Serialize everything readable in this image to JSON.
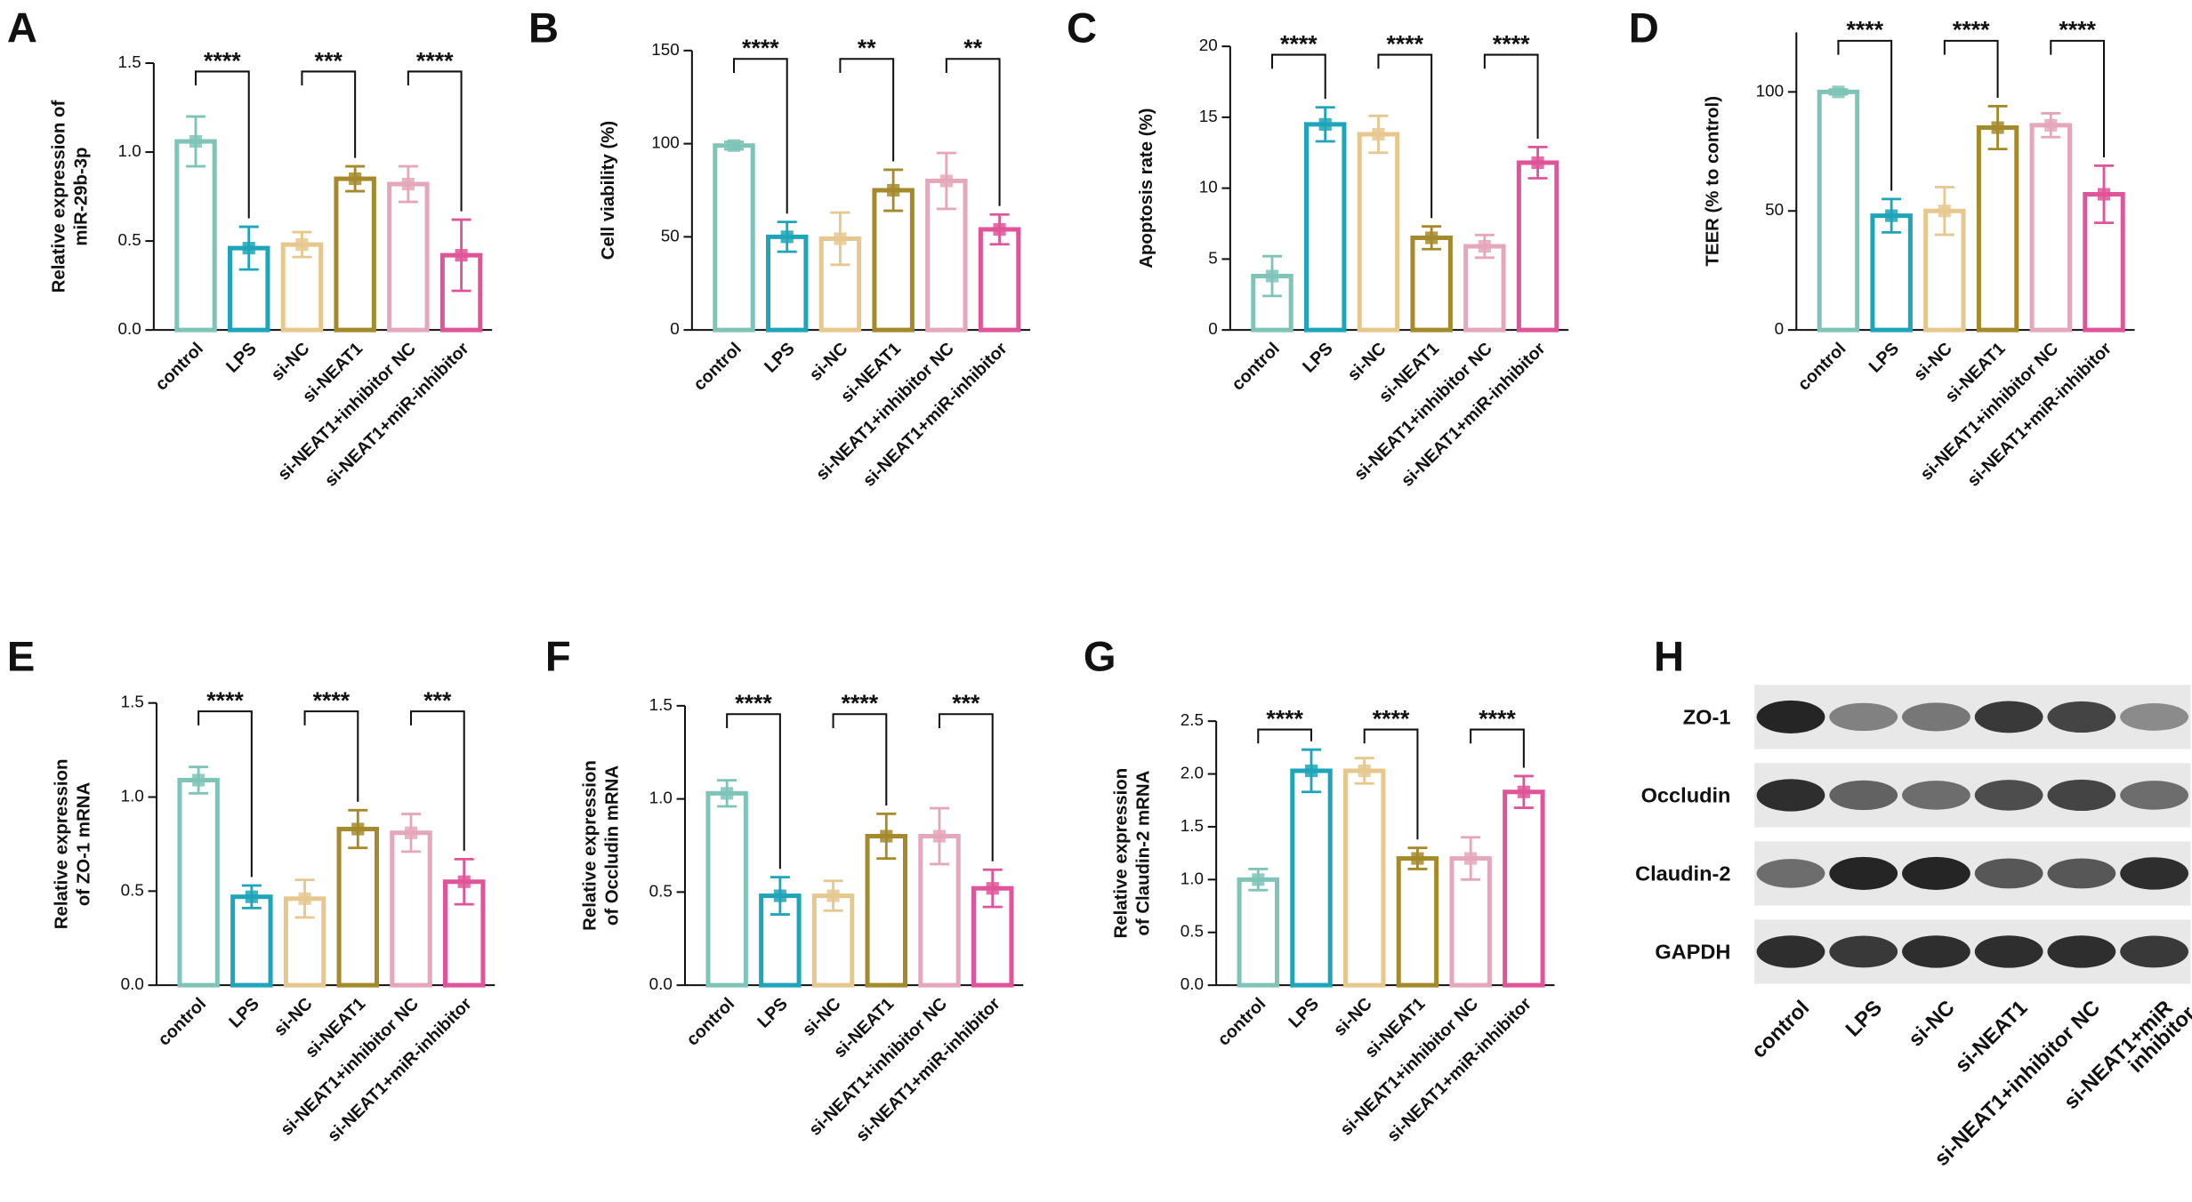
{
  "chart_data": [
    {
      "type": "bar",
      "panel": "A",
      "ylabel": [
        "Relative expression of",
        "miR-29b-3p"
      ],
      "categories": [
        "control",
        "LPS",
        "si-NC",
        "si-NEAT1",
        "si-NEAT1+inhibitor NC",
        "si-NEAT1+miR-inhibitor"
      ],
      "colors": [
        "#7fc4b8",
        "#1ea5b9",
        "#e6c88f",
        "#a58a2c",
        "#e5a7ba",
        "#e0559a"
      ],
      "values": [
        1.06,
        0.46,
        0.48,
        0.85,
        0.82,
        0.42
      ],
      "errors": [
        0.14,
        0.12,
        0.07,
        0.07,
        0.1,
        0.2
      ],
      "ylim": [
        0,
        1.5
      ],
      "yticks": [
        {
          "value": 0,
          "label": "0.0"
        },
        0.5,
        {
          "value": 1,
          "label": "1.0"
        },
        1.5
      ],
      "annotations": [
        "****",
        "***",
        "****"
      ]
    },
    {
      "type": "bar",
      "panel": "B",
      "ylabel": [
        "Cell viability (%)"
      ],
      "categories": [
        "control",
        "LPS",
        "si-NC",
        "si-NEAT1",
        "si-NEAT1+inhibitor NC",
        "si-NEAT1+miR-inhibitor"
      ],
      "colors": [
        "#7fc4b8",
        "#1ea5b9",
        "#e6c88f",
        "#a58a2c",
        "#e5a7ba",
        "#e0559a"
      ],
      "values": [
        99,
        50,
        49,
        75,
        80,
        54
      ],
      "errors": [
        2,
        8,
        14,
        11,
        15,
        8
      ],
      "ylim": [
        0,
        150
      ],
      "yticks": [
        0,
        50,
        100,
        150
      ],
      "annotations": [
        "****",
        "**",
        "**"
      ]
    },
    {
      "type": "bar",
      "panel": "C",
      "ylabel": [
        "Apoptosis rate (%)"
      ],
      "categories": [
        "control",
        "LPS",
        "si-NC",
        "si-NEAT1",
        "si-NEAT1+inhibitor NC",
        "si-NEAT1+miR-inhibitor"
      ],
      "colors": [
        "#7fc4b8",
        "#1ea5b9",
        "#e6c88f",
        "#a58a2c",
        "#e5a7ba",
        "#e0559a"
      ],
      "values": [
        3.8,
        14.5,
        13.8,
        6.5,
        5.9,
        11.8
      ],
      "errors": [
        1.4,
        1.2,
        1.3,
        0.8,
        0.8,
        1.1
      ],
      "ylim": [
        0,
        20
      ],
      "yticks": [
        0,
        5,
        10,
        15,
        20
      ],
      "annotations": [
        "****",
        "****",
        "****"
      ]
    },
    {
      "type": "bar",
      "panel": "D",
      "ylabel": [
        "TEER (% to control)"
      ],
      "categories": [
        "control",
        "LPS",
        "si-NC",
        "si-NEAT1",
        "si-NEAT1+inhibitor NC",
        "si-NEAT1+miR-inhibitor"
      ],
      "colors": [
        "#7fc4b8",
        "#1ea5b9",
        "#e6c88f",
        "#a58a2c",
        "#e5a7ba",
        "#e0559a"
      ],
      "values": [
        100,
        48,
        50,
        85,
        86,
        57
      ],
      "errors": [
        1,
        7,
        10,
        9,
        5,
        12
      ],
      "ylim": [
        0,
        125
      ],
      "yticks": [
        0,
        50,
        100
      ],
      "annotations": [
        "****",
        "****",
        "****"
      ]
    },
    {
      "type": "bar",
      "panel": "E",
      "ylabel": [
        "Relative expression",
        "of ZO-1 mRNA"
      ],
      "categories": [
        "control",
        "LPS",
        "si-NC",
        "si-NEAT1",
        "si-NEAT1+inhibitor NC",
        "si-NEAT1+miR-inhibitor"
      ],
      "colors": [
        "#7fc4b8",
        "#1ea5b9",
        "#e6c88f",
        "#a58a2c",
        "#e5a7ba",
        "#e0559a"
      ],
      "values": [
        1.09,
        0.47,
        0.46,
        0.83,
        0.81,
        0.55
      ],
      "errors": [
        0.07,
        0.06,
        0.1,
        0.1,
        0.1,
        0.12
      ],
      "ylim": [
        0,
        1.5
      ],
      "yticks": [
        {
          "value": 0,
          "label": "0.0"
        },
        0.5,
        {
          "value": 1,
          "label": "1.0"
        },
        1.5
      ],
      "annotations": [
        "****",
        "****",
        "***"
      ]
    },
    {
      "type": "bar",
      "panel": "F",
      "ylabel": [
        "Relative expression",
        "of Occludin mRNA"
      ],
      "categories": [
        "control",
        "LPS",
        "si-NC",
        "si-NEAT1",
        "si-NEAT1+inhibitor NC",
        "si-NEAT1+miR-inhibitor"
      ],
      "colors": [
        "#7fc4b8",
        "#1ea5b9",
        "#e6c88f",
        "#a58a2c",
        "#e5a7ba",
        "#e0559a"
      ],
      "values": [
        1.03,
        0.48,
        0.48,
        0.8,
        0.8,
        0.52
      ],
      "errors": [
        0.07,
        0.1,
        0.08,
        0.12,
        0.15,
        0.1
      ],
      "ylim": [
        0,
        1.5
      ],
      "yticks": [
        {
          "value": 0,
          "label": "0.0"
        },
        0.5,
        {
          "value": 1,
          "label": "1.0"
        },
        1.5
      ],
      "annotations": [
        "****",
        "****",
        "***"
      ]
    },
    {
      "type": "bar",
      "panel": "G",
      "ylabel": [
        "Relative expression",
        "of Claudin-2 mRNA"
      ],
      "categories": [
        "control",
        "LPS",
        "si-NC",
        "si-NEAT1",
        "si-NEAT1+inhibitor NC",
        "si-NEAT1+miR-inhibitor"
      ],
      "colors": [
        "#7fc4b8",
        "#1ea5b9",
        "#e6c88f",
        "#a58a2c",
        "#e5a7ba",
        "#e0559a"
      ],
      "values": [
        1.0,
        2.03,
        2.03,
        1.2,
        1.2,
        1.83
      ],
      "errors": [
        0.1,
        0.2,
        0.12,
        0.1,
        0.2,
        0.15
      ],
      "ylim": [
        0,
        2.5
      ],
      "yticks": [
        {
          "value": 0,
          "label": "0.0"
        },
        0.5,
        {
          "value": 1,
          "label": "1.0"
        },
        1.5,
        {
          "value": 2,
          "label": "2.0"
        },
        2.5
      ],
      "annotations": [
        "****",
        "****",
        "****"
      ]
    }
  ],
  "blot": {
    "panel": "H",
    "rows": [
      "ZO-1",
      "Occludin",
      "Claudin-2",
      "GAPDH"
    ],
    "lanes": [
      [
        "control"
      ],
      [
        "LPS"
      ],
      [
        "si-NC"
      ],
      [
        "si-NEAT1"
      ],
      [
        "si-NEAT1+inhibitor NC"
      ],
      [
        "si-NEAT1+miR",
        "inhibitor"
      ]
    ]
  }
}
